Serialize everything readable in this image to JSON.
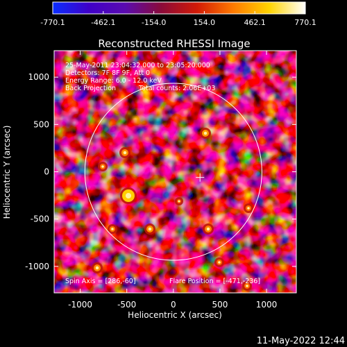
{
  "colorbar": {
    "ticks": [
      "-770.1",
      "-462.1",
      "-154.0",
      "154.0",
      "462.1",
      "770.1"
    ],
    "colors": [
      "#0a2dff",
      "#3f00c8",
      "#5a0bb0",
      "#8a0a3a",
      "#d21a06",
      "#ff7a00",
      "#ffd400",
      "#ffffff"
    ]
  },
  "plot": {
    "title": "Reconstructed RHESSI Image",
    "xlabel": "Heliocentric X (arcsec)",
    "ylabel": "Heliocentric Y (arcsec)",
    "xticks": [
      "-1000",
      "-500",
      "0",
      "500",
      "1000"
    ],
    "yticks": [
      "1000",
      "500",
      "0",
      "-500",
      "-1000"
    ],
    "xrange": [
      -1280,
      1320
    ],
    "yrange": [
      -1280,
      1280
    ]
  },
  "annotations": {
    "line1": "25-May-2011 23:04:32.000 to 23:05:20.000",
    "line2": "Detectors: 7F 8F 9F, Att 0",
    "line3": "Energy Range: 6.0 - 12.0 keV",
    "line4a": "Back Projection",
    "line4b": "Total counts: 2.06E+03",
    "spin_axis": "Spin Axis = [286,-60]",
    "flare_position": "Flare Position = [-471,-236]"
  },
  "timestamp": "11-May-2022 12:44",
  "disk": {
    "center_x": 0,
    "center_y": 0,
    "radius": 950
  },
  "marker": {
    "x": 286,
    "y": -60
  }
}
